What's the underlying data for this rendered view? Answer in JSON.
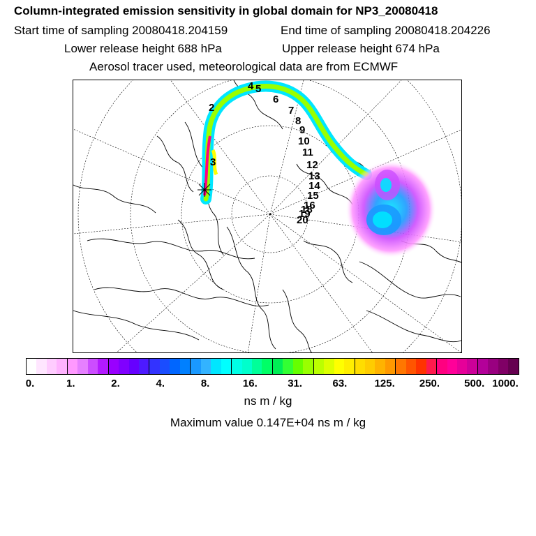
{
  "header": {
    "title": "Column-integrated emission sensitivity in global domain for NP3_20080418",
    "start_sampling": "Start time of sampling 20080418.204159",
    "end_sampling": "End time of sampling 20080418.204226",
    "lower_release": "Lower release height  688 hPa",
    "upper_release": "Upper release height  674 hPa",
    "tracer_info": "Aerosol tracer used, meteorological data are from ECMWF"
  },
  "map": {
    "trajectory_labels": [
      "2",
      "3",
      "4",
      "5",
      "6",
      "7",
      "8",
      "9",
      "10",
      "11",
      "12",
      "13",
      "14",
      "15",
      "16",
      "18",
      "19",
      "20"
    ]
  },
  "colorbar": {
    "tick_labels": [
      "0.",
      "1.",
      "2.",
      "4.",
      "8.",
      "16.",
      "31.",
      "63.",
      "125.",
      "250.",
      "500.",
      "1000."
    ],
    "colors": [
      "#ffffff",
      "#ffe6ff",
      "#ffccff",
      "#ffb3ff",
      "#ff99ff",
      "#e680ff",
      "#cc4dff",
      "#b31aff",
      "#9900ff",
      "#8000ff",
      "#6600ff",
      "#4d1aff",
      "#3333ff",
      "#1a4dff",
      "#0066ff",
      "#0080ff",
      "#1a99ff",
      "#33b3ff",
      "#00e6ff",
      "#00ffff",
      "#00ffe6",
      "#00ffcc",
      "#00ff99",
      "#00ff66",
      "#00ee55",
      "#33ff33",
      "#66ff00",
      "#99ff00",
      "#bbff00",
      "#ddff00",
      "#ffff00",
      "#ffee00",
      "#ffdd00",
      "#ffcc00",
      "#ffb300",
      "#ff9900",
      "#ff7700",
      "#ff5500",
      "#ff3300",
      "#ff1a4d",
      "#ff0080",
      "#ff0099",
      "#e60099",
      "#cc0099",
      "#b30099",
      "#990080",
      "#800066",
      "#660050"
    ],
    "unit": "ns m / kg",
    "max_value": "Maximum value  0.147E+04 ns m / kg"
  }
}
